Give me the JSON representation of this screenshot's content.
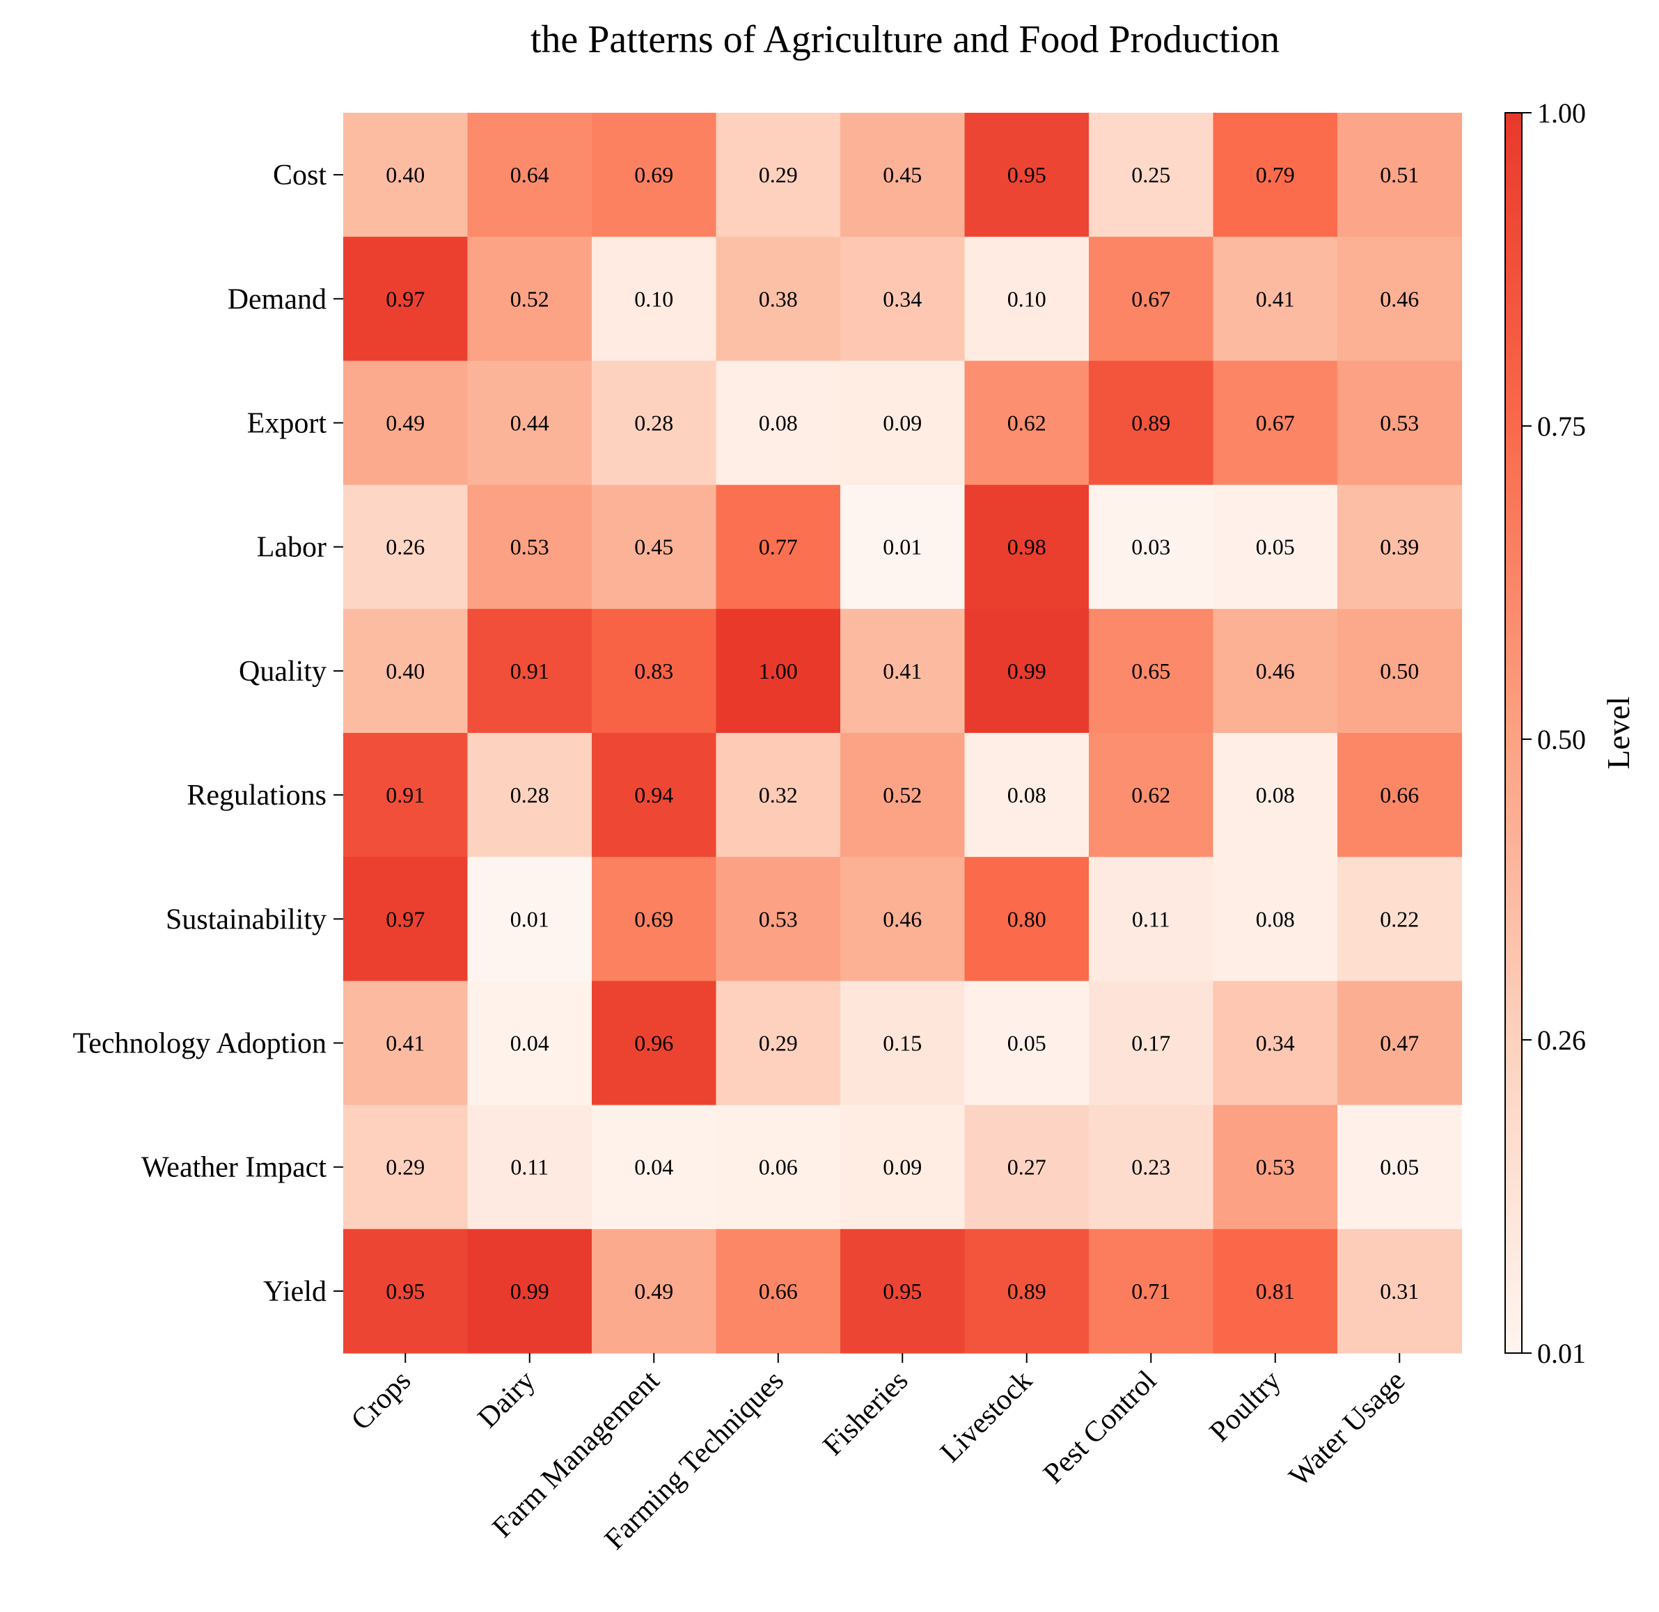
{
  "chart_data": {
    "type": "heatmap",
    "title": "the Patterns of Agriculture and Food Production",
    "x_categories": [
      "Crops",
      "Dairy",
      "Farm Management",
      "Farming Techniques",
      "Fisheries",
      "Livestock",
      "Pest Control",
      "Poultry",
      "Water Usage"
    ],
    "y_categories": [
      "Cost",
      "Demand",
      "Export",
      "Labor",
      "Quality",
      "Regulations",
      "Sustainability",
      "Technology Adoption",
      "Weather Impact",
      "Yield"
    ],
    "values": [
      [
        0.4,
        0.64,
        0.69,
        0.29,
        0.45,
        0.95,
        0.25,
        0.79,
        0.51
      ],
      [
        0.97,
        0.52,
        0.1,
        0.38,
        0.34,
        0.1,
        0.67,
        0.41,
        0.46
      ],
      [
        0.49,
        0.44,
        0.28,
        0.08,
        0.09,
        0.62,
        0.89,
        0.67,
        0.53
      ],
      [
        0.26,
        0.53,
        0.45,
        0.77,
        0.01,
        0.98,
        0.03,
        0.05,
        0.39
      ],
      [
        0.4,
        0.91,
        0.83,
        1.0,
        0.41,
        0.99,
        0.65,
        0.46,
        0.5
      ],
      [
        0.91,
        0.28,
        0.94,
        0.32,
        0.52,
        0.08,
        0.62,
        0.08,
        0.66
      ],
      [
        0.97,
        0.01,
        0.69,
        0.53,
        0.46,
        0.8,
        0.11,
        0.08,
        0.22
      ],
      [
        0.41,
        0.04,
        0.96,
        0.29,
        0.15,
        0.05,
        0.17,
        0.34,
        0.47
      ],
      [
        0.29,
        0.11,
        0.04,
        0.06,
        0.09,
        0.27,
        0.23,
        0.53,
        0.05
      ],
      [
        0.95,
        0.99,
        0.49,
        0.66,
        0.95,
        0.89,
        0.71,
        0.81,
        0.31
      ]
    ],
    "colorbar": {
      "label": "Level",
      "ticks": [
        "0.01",
        "0.26",
        "0.50",
        "0.75",
        "1.00"
      ],
      "tick_values": [
        0.01,
        0.26,
        0.5,
        0.75,
        1.0
      ],
      "range": [
        0.01,
        1.0
      ]
    },
    "colormap": [
      "#fff5f0",
      "#fee0d2",
      "#fcbba1",
      "#fc9272",
      "#fb6a4a",
      "#e8392b"
    ],
    "grid": false
  }
}
